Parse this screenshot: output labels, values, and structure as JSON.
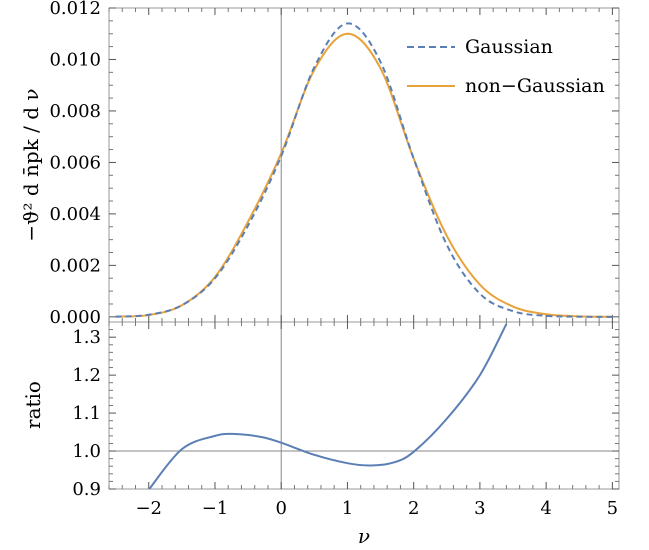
{
  "chart_data": [
    {
      "type": "line",
      "panel": "top",
      "xlabel": "ν",
      "ylabel": "−ϑ² d n̄pk / d ν",
      "xlim": [
        -2.6,
        5.1
      ],
      "ylim": [
        -0.0002,
        0.012
      ],
      "x_ticks": [
        "−2",
        "−1",
        "0",
        "1",
        "2",
        "3",
        "4",
        "5"
      ],
      "y_ticks": [
        "0.000",
        "0.002",
        "0.004",
        "0.006",
        "0.008",
        "0.010",
        "0.012"
      ],
      "legend_position": "top-right",
      "series": [
        {
          "name": "Gaussian",
          "style": "dashed",
          "color": "#5B7FB5",
          "x": [
            -2.5,
            -2.0,
            -1.5,
            -1.0,
            -0.5,
            0.0,
            0.5,
            1.0,
            1.5,
            2.0,
            2.5,
            3.0,
            3.5,
            4.0,
            4.5,
            5.0
          ],
          "y": [
            1e-05,
            8e-05,
            0.00045,
            0.0015,
            0.00355,
            0.00625,
            0.0097,
            0.0114,
            0.0099,
            0.00615,
            0.0028,
            0.0009,
            0.00022,
            4e-05,
            5e-06,
            0.0
          ]
        },
        {
          "name": "non−Gaussian",
          "style": "solid",
          "color": "#E8A23A",
          "x": [
            -2.5,
            -2.0,
            -1.5,
            -1.0,
            -0.5,
            0.0,
            0.5,
            1.0,
            1.5,
            2.0,
            2.5,
            3.0,
            3.5,
            4.0,
            4.5,
            5.0
          ],
          "y": [
            1e-05,
            7e-05,
            0.00045,
            0.00155,
            0.0037,
            0.00635,
            0.0096,
            0.011,
            0.00965,
            0.00615,
            0.00315,
            0.00125,
            0.0004,
            0.0001,
            2e-05,
            0.0
          ]
        }
      ]
    },
    {
      "type": "line",
      "panel": "bottom",
      "xlabel": "ν",
      "ylabel": "ratio",
      "xlim": [
        -2.6,
        5.1
      ],
      "ylim": [
        0.9,
        1.34
      ],
      "x_ticks": [
        "−2",
        "−1",
        "0",
        "1",
        "2",
        "3",
        "4",
        "5"
      ],
      "y_ticks": [
        "0.9",
        "1.0",
        "1.1",
        "1.2",
        "1.3"
      ],
      "reference_line": 1.0,
      "series": [
        {
          "style": "solid",
          "color": "#5B7FB5",
          "x": [
            -2.0,
            -1.5,
            -1.0,
            -0.7,
            -0.3,
            0.0,
            0.5,
            1.0,
            1.35,
            1.7,
            2.0,
            2.5,
            3.0,
            3.4
          ],
          "y": [
            0.898,
            1.005,
            1.04,
            1.045,
            1.037,
            1.022,
            0.99,
            0.968,
            0.962,
            0.97,
            0.998,
            1.085,
            1.2,
            1.335
          ]
        }
      ]
    }
  ]
}
